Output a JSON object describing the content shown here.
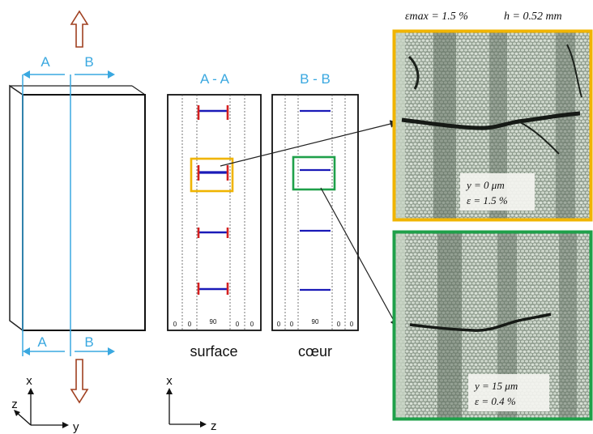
{
  "specimen": {
    "section_a": "A",
    "section_b": "B"
  },
  "axes_left": {
    "x": "x",
    "y": "y",
    "z": "z"
  },
  "axes_right": {
    "x": "x",
    "z": "z"
  },
  "panel_aa": {
    "title": "A - A",
    "caption": "surface",
    "ply_labels": [
      "0",
      "0",
      "90",
      "0",
      "0"
    ]
  },
  "panel_bb": {
    "title": "B - B",
    "caption": "cœur",
    "ply_labels": [
      "0",
      "0",
      "90",
      "0",
      "0"
    ]
  },
  "header": {
    "eps_max": "εmax = 1.5 %",
    "h": "h = 0.52 mm"
  },
  "micrograph_top": {
    "y_label": "y = 0 μm",
    "eps_label": "ε = 1.5 %",
    "border_color": "#f0b400"
  },
  "micrograph_bottom": {
    "y_label": "y = 15 μm",
    "eps_label": "ε = 0.4 %",
    "border_color": "#1fa04a"
  },
  "colors": {
    "section_cyan": "#3aa8e0",
    "crack_blue": "#1a1ab8",
    "crack_red": "#d42020",
    "load_arrow": "#a04020"
  }
}
